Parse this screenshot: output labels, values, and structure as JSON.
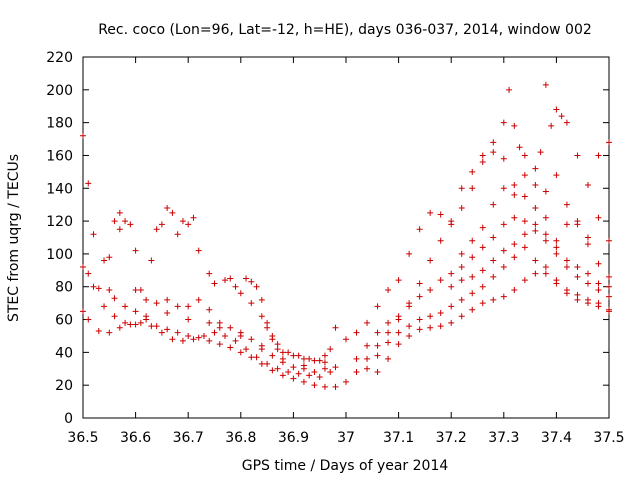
{
  "chart_data": {
    "type": "scatter",
    "title": "Rec. coco (Lon=96, Lat=-12, h=HE), days 036-037, 2014, window 002",
    "xlabel": "GPS time / Days of year 2014",
    "ylabel": "STEC from uqrg / TECUs",
    "xlim": [
      36.5,
      37.5
    ],
    "ylim": [
      0,
      220
    ],
    "x_ticks": [
      36.5,
      36.6,
      36.7,
      36.8,
      36.9,
      37.0,
      37.1,
      37.2,
      37.3,
      37.4,
      37.5
    ],
    "x_tick_labels": [
      "36.5",
      "36.6",
      "36.7",
      "36.8",
      "36.9",
      "37",
      "37.1",
      "37.2",
      "37.3",
      "37.4",
      "37.5"
    ],
    "y_ticks": [
      0,
      20,
      40,
      60,
      80,
      100,
      120,
      140,
      160,
      180,
      200,
      220
    ],
    "y_tick_labels": [
      "0",
      "20",
      "40",
      "60",
      "80",
      "100",
      "120",
      "140",
      "160",
      "180",
      "200",
      "220"
    ],
    "grid": false,
    "marker": "plus",
    "marker_color": "#cc0000",
    "series": [
      {
        "points": [
          [
            36.5,
            172
          ],
          [
            36.51,
            143
          ],
          [
            36.5,
            92
          ],
          [
            36.51,
            88
          ],
          [
            36.52,
            80
          ],
          [
            36.53,
            79
          ],
          [
            36.55,
            78
          ],
          [
            36.56,
            73
          ],
          [
            36.58,
            68
          ],
          [
            36.6,
            65
          ],
          [
            36.62,
            60
          ],
          [
            36.64,
            56
          ],
          [
            36.66,
            54
          ],
          [
            36.68,
            52
          ],
          [
            36.7,
            50
          ],
          [
            36.72,
            49
          ],
          [
            36.74,
            47
          ],
          [
            36.76,
            45
          ],
          [
            36.78,
            43
          ],
          [
            36.8,
            40
          ],
          [
            36.82,
            37
          ],
          [
            36.84,
            33
          ],
          [
            36.86,
            29
          ],
          [
            36.88,
            26
          ],
          [
            36.9,
            24
          ],
          [
            36.92,
            22
          ],
          [
            36.94,
            20
          ],
          [
            36.96,
            19
          ],
          [
            36.98,
            19
          ],
          [
            36.52,
            112
          ],
          [
            36.54,
            96
          ],
          [
            36.55,
            98
          ],
          [
            36.57,
            115
          ],
          [
            36.58,
            120
          ],
          [
            36.59,
            118
          ],
          [
            36.6,
            102
          ],
          [
            36.61,
            78
          ],
          [
            36.63,
            96
          ],
          [
            36.64,
            115
          ],
          [
            36.65,
            118
          ],
          [
            36.66,
            128
          ],
          [
            36.67,
            125
          ],
          [
            36.68,
            112
          ],
          [
            36.69,
            120
          ],
          [
            36.7,
            118
          ],
          [
            36.71,
            122
          ],
          [
            36.72,
            102
          ],
          [
            36.74,
            88
          ],
          [
            36.75,
            82
          ],
          [
            36.77,
            84
          ],
          [
            36.78,
            85
          ],
          [
            36.79,
            80
          ],
          [
            36.8,
            76
          ],
          [
            36.82,
            70
          ],
          [
            36.84,
            62
          ],
          [
            36.85,
            55
          ],
          [
            36.86,
            48
          ],
          [
            36.87,
            45
          ],
          [
            36.88,
            40
          ],
          [
            36.9,
            38
          ],
          [
            36.92,
            36
          ],
          [
            36.94,
            35
          ],
          [
            36.96,
            34
          ],
          [
            36.5,
            65
          ],
          [
            36.51,
            60
          ],
          [
            36.53,
            53
          ],
          [
            36.55,
            52
          ],
          [
            36.57,
            55
          ],
          [
            36.59,
            57
          ],
          [
            36.61,
            58
          ],
          [
            36.63,
            56
          ],
          [
            36.65,
            52
          ],
          [
            36.67,
            48
          ],
          [
            36.69,
            47
          ],
          [
            36.71,
            48
          ],
          [
            36.73,
            50
          ],
          [
            36.75,
            52
          ],
          [
            36.77,
            50
          ],
          [
            36.79,
            47
          ],
          [
            36.81,
            42
          ],
          [
            36.83,
            37
          ],
          [
            36.85,
            33
          ],
          [
            36.87,
            30
          ],
          [
            36.89,
            28
          ],
          [
            36.91,
            27
          ],
          [
            36.93,
            26
          ],
          [
            36.95,
            25
          ],
          [
            36.97,
            28
          ],
          [
            36.54,
            68
          ],
          [
            36.56,
            62
          ],
          [
            36.58,
            58
          ],
          [
            36.6,
            57
          ],
          [
            36.62,
            62
          ],
          [
            36.64,
            70
          ],
          [
            36.66,
            72
          ],
          [
            36.68,
            68
          ],
          [
            36.7,
            68
          ],
          [
            36.72,
            72
          ],
          [
            36.74,
            66
          ],
          [
            36.76,
            58
          ],
          [
            36.78,
            55
          ],
          [
            36.8,
            52
          ],
          [
            36.82,
            48
          ],
          [
            36.84,
            42
          ],
          [
            36.86,
            38
          ],
          [
            36.88,
            34
          ],
          [
            36.9,
            31
          ],
          [
            36.92,
            30
          ],
          [
            36.94,
            28
          ],
          [
            36.96,
            30
          ],
          [
            36.98,
            31
          ],
          [
            36.56,
            120
          ],
          [
            36.57,
            125
          ],
          [
            36.6,
            78
          ],
          [
            36.62,
            72
          ],
          [
            36.66,
            64
          ],
          [
            36.7,
            60
          ],
          [
            36.74,
            58
          ],
          [
            36.76,
            55
          ],
          [
            36.8,
            50
          ],
          [
            36.84,
            44
          ],
          [
            36.88,
            36
          ],
          [
            36.92,
            32
          ],
          [
            36.96,
            38
          ],
          [
            36.98,
            55
          ],
          [
            36.81,
            85
          ],
          [
            36.82,
            83
          ],
          [
            36.83,
            80
          ],
          [
            36.84,
            72
          ],
          [
            36.85,
            58
          ],
          [
            36.86,
            50
          ],
          [
            36.87,
            42
          ],
          [
            36.89,
            40
          ],
          [
            36.91,
            38
          ],
          [
            36.93,
            36
          ],
          [
            36.95,
            35
          ],
          [
            36.97,
            42
          ],
          [
            37.0,
            22
          ],
          [
            37.02,
            28
          ],
          [
            37.04,
            36
          ],
          [
            37.06,
            44
          ],
          [
            37.08,
            52
          ],
          [
            37.1,
            60
          ],
          [
            37.12,
            70
          ],
          [
            37.14,
            82
          ],
          [
            37.16,
            96
          ],
          [
            37.18,
            108
          ],
          [
            37.2,
            120
          ],
          [
            37.22,
            140
          ],
          [
            37.24,
            150
          ],
          [
            37.26,
            160
          ],
          [
            37.28,
            168
          ],
          [
            37.3,
            180
          ],
          [
            37.31,
            200
          ],
          [
            37.32,
            178
          ],
          [
            37.33,
            165
          ],
          [
            37.34,
            160
          ],
          [
            37.36,
            152
          ],
          [
            37.37,
            162
          ],
          [
            37.38,
            203
          ],
          [
            37.39,
            178
          ],
          [
            37.4,
            188
          ],
          [
            37.41,
            184
          ],
          [
            37.42,
            180
          ],
          [
            37.44,
            160
          ],
          [
            37.46,
            142
          ],
          [
            37.48,
            160
          ],
          [
            37.5,
            168
          ],
          [
            37.0,
            48
          ],
          [
            37.02,
            52
          ],
          [
            37.04,
            58
          ],
          [
            37.06,
            68
          ],
          [
            37.08,
            78
          ],
          [
            37.1,
            84
          ],
          [
            37.12,
            100
          ],
          [
            37.14,
            115
          ],
          [
            37.16,
            125
          ],
          [
            37.18,
            124
          ],
          [
            37.2,
            118
          ],
          [
            37.22,
            128
          ],
          [
            37.24,
            140
          ],
          [
            37.26,
            156
          ],
          [
            37.28,
            162
          ],
          [
            37.3,
            158
          ],
          [
            37.32,
            142
          ],
          [
            37.34,
            135
          ],
          [
            37.36,
            128
          ],
          [
            37.38,
            122
          ],
          [
            37.4,
            108
          ],
          [
            37.42,
            118
          ],
          [
            37.44,
            120
          ],
          [
            37.46,
            106
          ],
          [
            37.48,
            122
          ],
          [
            37.5,
            108
          ],
          [
            37.02,
            36
          ],
          [
            37.04,
            44
          ],
          [
            37.06,
            52
          ],
          [
            37.08,
            58
          ],
          [
            37.1,
            62
          ],
          [
            37.12,
            68
          ],
          [
            37.14,
            74
          ],
          [
            37.16,
            78
          ],
          [
            37.18,
            84
          ],
          [
            37.2,
            88
          ],
          [
            37.22,
            92
          ],
          [
            37.24,
            98
          ],
          [
            37.26,
            104
          ],
          [
            37.28,
            110
          ],
          [
            37.3,
            118
          ],
          [
            37.32,
            122
          ],
          [
            37.34,
            120
          ],
          [
            37.36,
            114
          ],
          [
            37.38,
            108
          ],
          [
            37.4,
            100
          ],
          [
            37.42,
            96
          ],
          [
            37.44,
            92
          ],
          [
            37.46,
            88
          ],
          [
            37.48,
            82
          ],
          [
            37.5,
            80
          ],
          [
            37.04,
            30
          ],
          [
            37.06,
            38
          ],
          [
            37.08,
            46
          ],
          [
            37.1,
            52
          ],
          [
            37.12,
            56
          ],
          [
            37.14,
            60
          ],
          [
            37.16,
            62
          ],
          [
            37.18,
            64
          ],
          [
            37.2,
            68
          ],
          [
            37.22,
            72
          ],
          [
            37.24,
            76
          ],
          [
            37.26,
            80
          ],
          [
            37.28,
            86
          ],
          [
            37.3,
            92
          ],
          [
            37.32,
            98
          ],
          [
            37.34,
            104
          ],
          [
            37.36,
            96
          ],
          [
            37.38,
            88
          ],
          [
            37.4,
            82
          ],
          [
            37.42,
            78
          ],
          [
            37.44,
            75
          ],
          [
            37.46,
            72
          ],
          [
            37.48,
            70
          ],
          [
            37.5,
            66
          ],
          [
            37.06,
            28
          ],
          [
            37.08,
            36
          ],
          [
            37.1,
            45
          ],
          [
            37.12,
            50
          ],
          [
            37.14,
            54
          ],
          [
            37.16,
            55
          ],
          [
            37.18,
            56
          ],
          [
            37.2,
            58
          ],
          [
            37.22,
            62
          ],
          [
            37.24,
            66
          ],
          [
            37.26,
            70
          ],
          [
            37.28,
            72
          ],
          [
            37.3,
            74
          ],
          [
            37.32,
            78
          ],
          [
            37.34,
            84
          ],
          [
            37.36,
            88
          ],
          [
            37.38,
            92
          ],
          [
            37.4,
            84
          ],
          [
            37.42,
            76
          ],
          [
            37.44,
            72
          ],
          [
            37.46,
            70
          ],
          [
            37.48,
            68
          ],
          [
            37.5,
            65
          ],
          [
            37.22,
            100
          ],
          [
            37.24,
            108
          ],
          [
            37.26,
            116
          ],
          [
            37.28,
            130
          ],
          [
            37.3,
            140
          ],
          [
            37.32,
            136
          ],
          [
            37.34,
            148
          ],
          [
            37.36,
            142
          ],
          [
            37.38,
            138
          ],
          [
            37.4,
            148
          ],
          [
            37.42,
            130
          ],
          [
            37.44,
            118
          ],
          [
            37.46,
            110
          ],
          [
            37.48,
            94
          ],
          [
            37.5,
            86
          ],
          [
            37.2,
            80
          ],
          [
            37.22,
            84
          ],
          [
            37.24,
            86
          ],
          [
            37.26,
            90
          ],
          [
            37.28,
            96
          ],
          [
            37.3,
            102
          ],
          [
            37.32,
            106
          ],
          [
            37.34,
            112
          ],
          [
            37.36,
            118
          ],
          [
            37.38,
            112
          ],
          [
            37.4,
            104
          ],
          [
            37.42,
            92
          ],
          [
            37.44,
            86
          ],
          [
            37.46,
            82
          ],
          [
            37.48,
            78
          ],
          [
            37.5,
            74
          ]
        ]
      }
    ]
  }
}
